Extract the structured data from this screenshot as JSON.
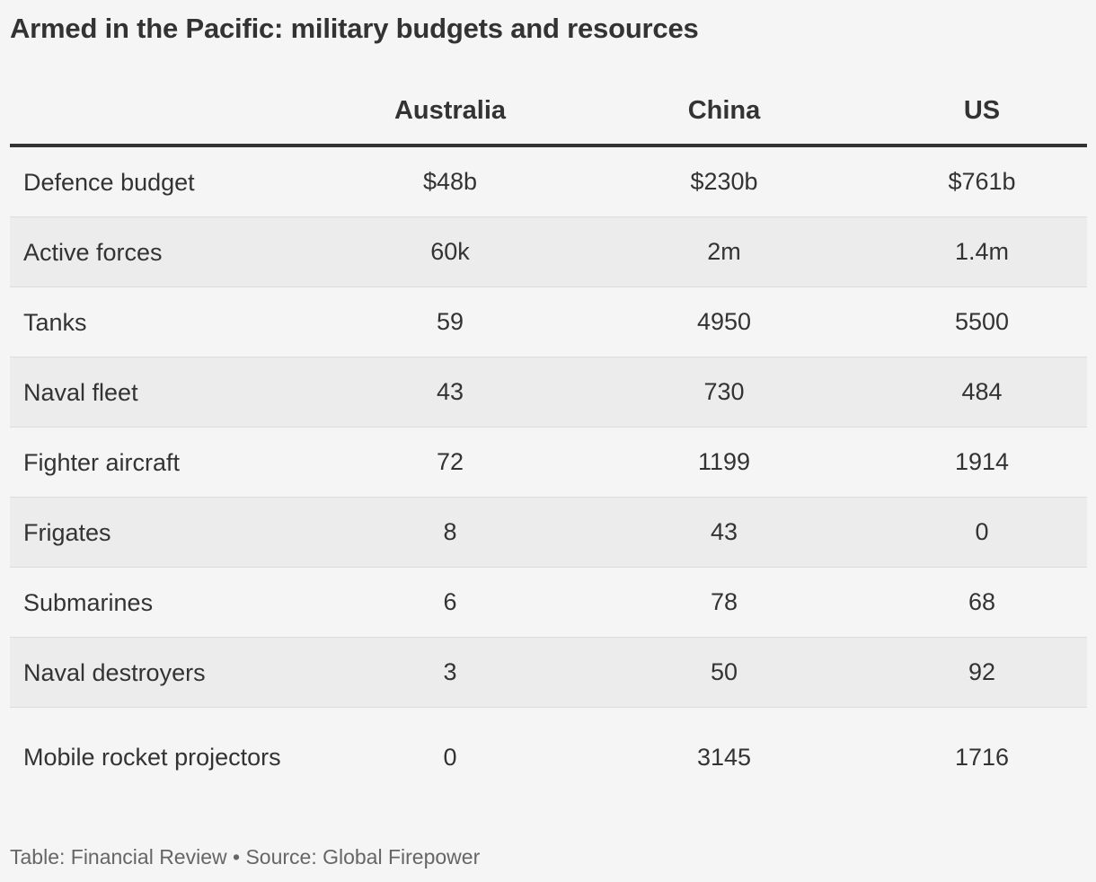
{
  "title": "Armed in the Pacific: military budgets and resources",
  "footer": "Table: Financial Review • Source: Global Firepower",
  "chart_data": {
    "type": "table",
    "title": "Armed in the Pacific: military budgets and resources",
    "columns": [
      "",
      "Australia",
      "China",
      "US"
    ],
    "rows": [
      {
        "label": "Defence budget",
        "values": [
          "$48b",
          "$230b",
          "$761b"
        ]
      },
      {
        "label": "Active forces",
        "values": [
          "60k",
          "2m",
          "1.4m"
        ]
      },
      {
        "label": "Tanks",
        "values": [
          "59",
          "4950",
          "5500"
        ]
      },
      {
        "label": "Naval fleet",
        "values": [
          "43",
          "730",
          "484"
        ]
      },
      {
        "label": "Fighter aircraft",
        "values": [
          "72",
          "1199",
          "1914"
        ]
      },
      {
        "label": "Frigates",
        "values": [
          "8",
          "43",
          "0"
        ]
      },
      {
        "label": "Submarines",
        "values": [
          "6",
          "78",
          "68"
        ]
      },
      {
        "label": "Naval destroyers",
        "values": [
          "3",
          "50",
          "92"
        ]
      },
      {
        "label": "Mobile rocket projectors",
        "values": [
          "0",
          "3145",
          "1716"
        ]
      }
    ]
  }
}
